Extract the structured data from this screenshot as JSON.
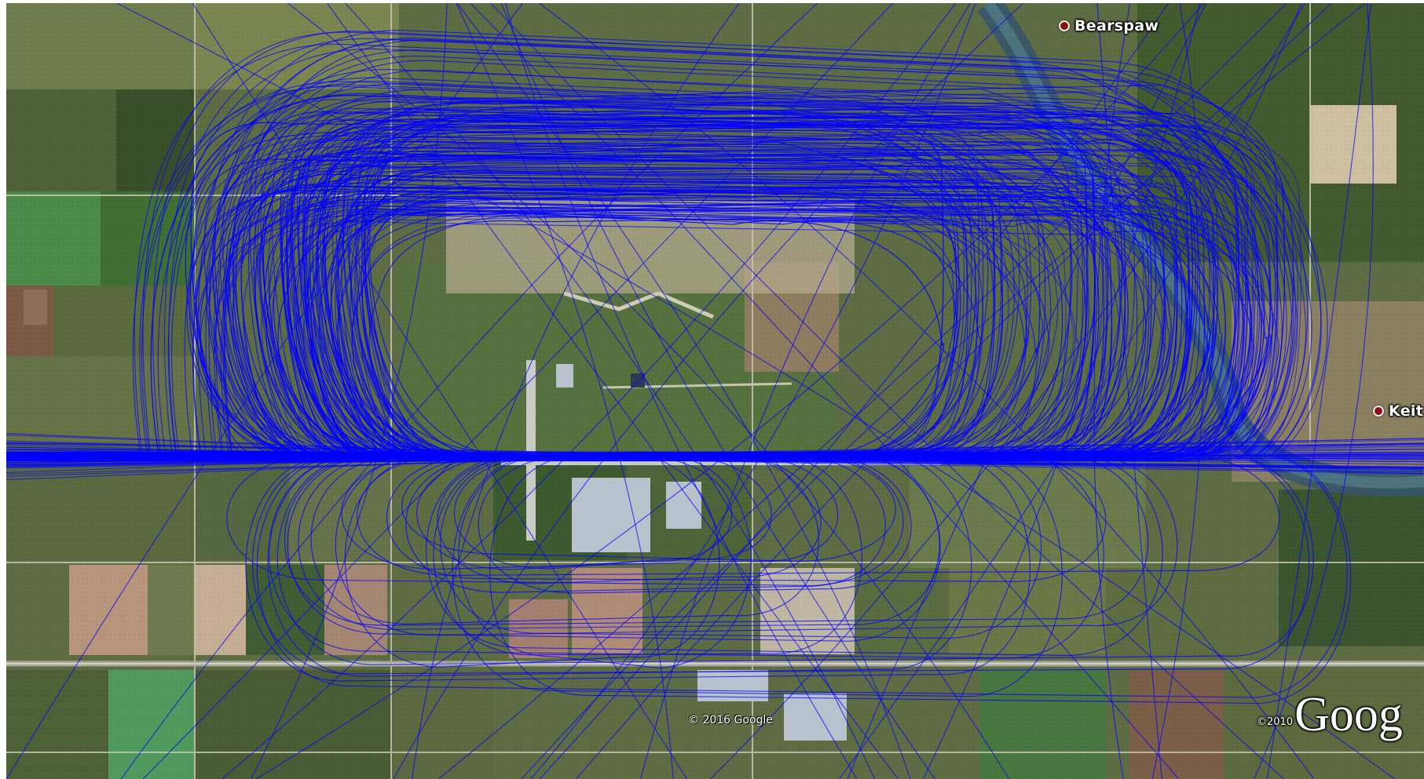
{
  "map": {
    "view": "satellite",
    "track_color": "#0000ff",
    "places": [
      {
        "name": "Bearspaw",
        "icon": "place-marker-icon"
      },
      {
        "name": "Keit",
        "icon": "place-marker-icon"
      }
    ],
    "copyright_imagery": "© 2016 Google",
    "logo": {
      "year": "©2010",
      "text": "Goog"
    }
  }
}
